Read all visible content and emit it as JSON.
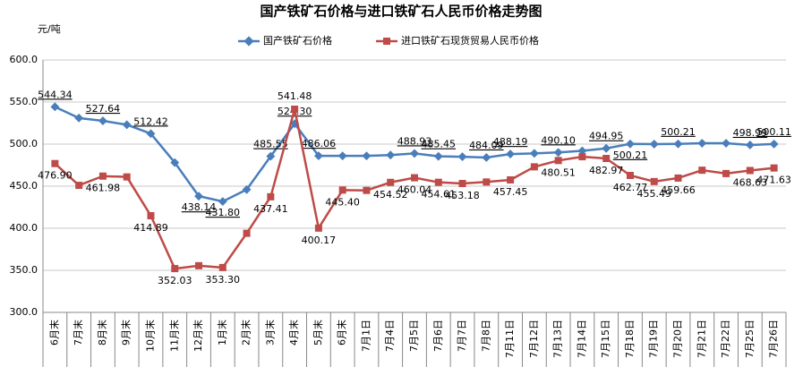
{
  "chart_data": {
    "type": "line",
    "title": "国产铁矿石价格与进口铁矿石人民币价格走势图",
    "y_label": "元/吨",
    "categories": [
      "6月末",
      "7月末",
      "8月末",
      "9月末",
      "10月末",
      "11月末",
      "12月末",
      "1月末",
      "2月末",
      "3月末",
      "4月末",
      "5月末",
      "6月末",
      "7月1日",
      "7月4日",
      "7月5日",
      "7月6日",
      "7月7日",
      "7月8日",
      "7月11日",
      "7月12日",
      "7月13日",
      "7月14日",
      "7月15日",
      "7月18日",
      "7月19日",
      "7月20日",
      "7月21日",
      "7月22日",
      "7月25日",
      "7月26日"
    ],
    "series": [
      {
        "name": "国产铁矿石价格",
        "color": "#4a7ebb",
        "values": [
          544.34,
          531,
          527.64,
          523,
          512.42,
          478,
          438.14,
          431.8,
          446,
          485.55,
          524.3,
          486.06,
          486,
          486,
          487,
          488.93,
          485.45,
          485,
          484.09,
          488.19,
          489,
          490.1,
          492,
          494.95,
          500.21,
          500,
          500.21,
          501,
          501,
          498.99,
          500.11
        ],
        "value_labels": [
          "544.34",
          null,
          "527.64",
          null,
          "512.42",
          null,
          "438.14",
          "431.80",
          null,
          "485.55",
          "524.30",
          "486.06",
          null,
          null,
          null,
          "488.93",
          "485.45",
          null,
          "484.09",
          "488.19",
          null,
          "490.10",
          null,
          "494.95",
          "500.21",
          null,
          "500.21",
          null,
          null,
          "498.99",
          "500.11"
        ]
      },
      {
        "name": "进口铁矿石现货贸易人民币价格",
        "color": "#be4b48",
        "values": [
          476.9,
          451,
          461.98,
          461,
          414.89,
          352.03,
          355.5,
          353.3,
          394,
          437.41,
          541.48,
          400.17,
          445.4,
          445,
          454.52,
          460.04,
          454.61,
          453.18,
          455,
          457.45,
          473,
          480.51,
          485,
          482.97,
          462.77,
          455.49,
          459.66,
          469,
          465,
          468.63,
          471.63
        ],
        "value_labels": [
          "476.90",
          null,
          "461.98",
          null,
          "414.89",
          "352.03",
          null,
          "353.30",
          null,
          "437.41",
          "541.48",
          "400.17",
          "445.40",
          null,
          "454.52",
          "460.04",
          "454.61",
          "453.18",
          null,
          "457.45",
          null,
          "480.51",
          null,
          "482.97",
          "462.77",
          "455.49",
          "459.66",
          null,
          null,
          "468.63",
          "471.63"
        ]
      }
    ],
    "ylim": [
      300,
      600
    ],
    "yticks": [
      {
        "value": 300,
        "label": "300.0"
      },
      {
        "value": 350,
        "label": "350.0"
      },
      {
        "value": 400,
        "label": "400.0"
      },
      {
        "value": 450,
        "label": "450.0"
      },
      {
        "value": 500,
        "label": "500.0"
      },
      {
        "value": 550,
        "label": "550.0"
      },
      {
        "value": 600,
        "label": "600.0"
      }
    ],
    "grid": true
  }
}
